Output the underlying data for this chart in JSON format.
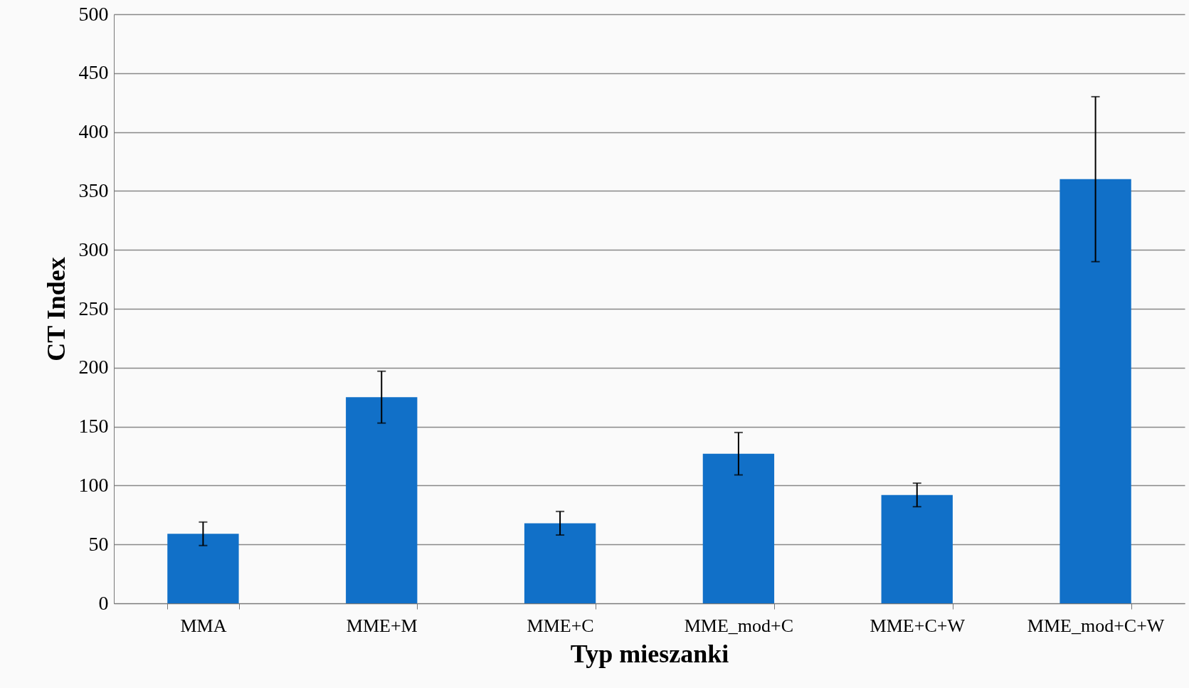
{
  "chart_data": {
    "type": "bar",
    "xlabel": "Typ mieszanki",
    "ylabel": "CT Index",
    "categories": [
      "MMA",
      "MME+M",
      "MME+C",
      "MME_mod+C",
      "MME+C+W",
      "MME_mod+C+W"
    ],
    "values": [
      59,
      175,
      68,
      127,
      92,
      360
    ],
    "errors": [
      10,
      22,
      10,
      18,
      10,
      70
    ],
    "color": "#1170c8",
    "ylim": [
      0,
      500
    ],
    "yticks": [
      0,
      50,
      100,
      150,
      200,
      250,
      300,
      350,
      400,
      450,
      500
    ],
    "grid": "y"
  }
}
